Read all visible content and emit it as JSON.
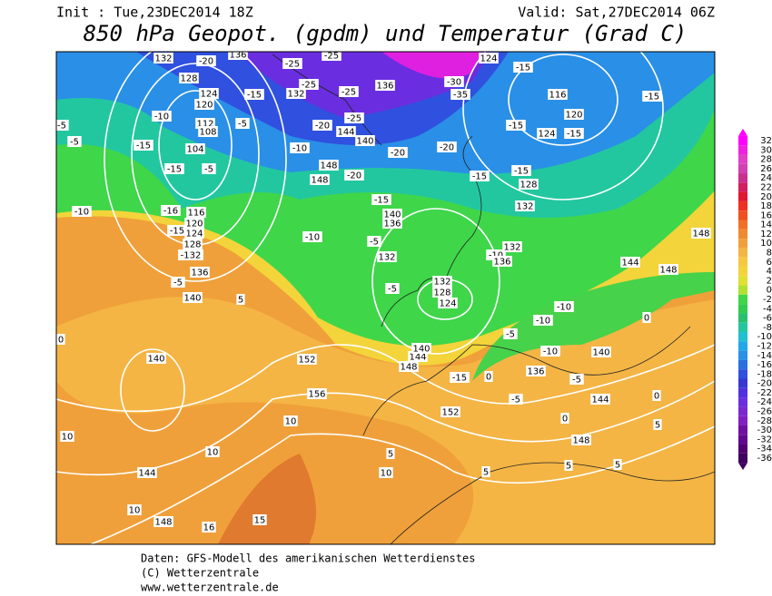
{
  "header": {
    "init": "Init : Tue,23DEC2014 18Z",
    "valid": "Valid: Sat,27DEC2014 06Z",
    "title": "850 hPa Geopot. (gpdm) und Temperatur (Grad C)"
  },
  "colorbar": {
    "ticks": [
      32,
      30,
      28,
      26,
      24,
      22,
      20,
      18,
      16,
      14,
      12,
      10,
      8,
      6,
      4,
      2,
      0,
      -2,
      -4,
      -6,
      -8,
      -10,
      -12,
      -14,
      -16,
      -18,
      -20,
      -22,
      -24,
      -26,
      -28,
      -30,
      -32,
      -34,
      -36
    ],
    "colors": [
      "#ff00ff",
      "#f020e0",
      "#e040c8",
      "#d040b0",
      "#c83090",
      "#d02060",
      "#e01830",
      "#f03020",
      "#f05020",
      "#f07028",
      "#f08a30",
      "#f0a03a",
      "#f4b545",
      "#f6c840",
      "#f3d43a",
      "#e0e030",
      "#b0e030",
      "#3fd64a",
      "#30cc50",
      "#28c070",
      "#22c7a0",
      "#20c0d0",
      "#20a8e8",
      "#2a8fe6",
      "#2a70e0",
      "#3050e0",
      "#3838d0",
      "#5030e0",
      "#6a2ee0",
      "#7a28d0",
      "#8020c0",
      "#7010a0",
      "#600890",
      "#500070",
      "#400060"
    ]
  },
  "map_labels": [
    "132",
    "-20",
    "136",
    "-25",
    "-25",
    "128",
    "-25",
    "-25",
    "124",
    "132",
    "136",
    "120",
    "-15",
    "-20",
    "-25",
    "-5",
    "-10",
    "112",
    "-5",
    "144",
    "140",
    "108",
    "-5",
    "-15",
    "104",
    "-10",
    "-20",
    "-20",
    "-15",
    "-5",
    "148",
    "-20",
    "148",
    "-15",
    "124",
    "-15",
    "116",
    "120",
    "-15",
    "-15",
    "124",
    "-30",
    "-35",
    "-10",
    "-16",
    "116",
    "120",
    "124",
    "128",
    "-15",
    "-132",
    "136",
    "-5",
    "140",
    "5",
    "0",
    "140",
    "152",
    "156",
    "10",
    "10",
    "10",
    "144",
    "10",
    "148",
    "16",
    "15",
    "10",
    "152",
    "148",
    "5",
    "5",
    "5",
    "5",
    "0",
    "144",
    "140",
    "-5",
    "-10",
    "-10",
    "-10",
    "0",
    "148",
    "148",
    "144",
    "132",
    "128",
    "124",
    "-5",
    "132",
    "140",
    "136",
    "-10",
    "-5",
    "-15",
    "-10",
    "136",
    "132",
    "-15",
    "128",
    "132",
    "-15",
    "-15",
    "0",
    "148",
    "144",
    "140",
    "136",
    "-5",
    "-5",
    "0",
    "5"
  ],
  "footer": [
    "Daten: GFS-Modell des amerikanischen Wetterdienstes",
    "(C) Wetterzentrale",
    "www.wetterzentrale.de"
  ]
}
